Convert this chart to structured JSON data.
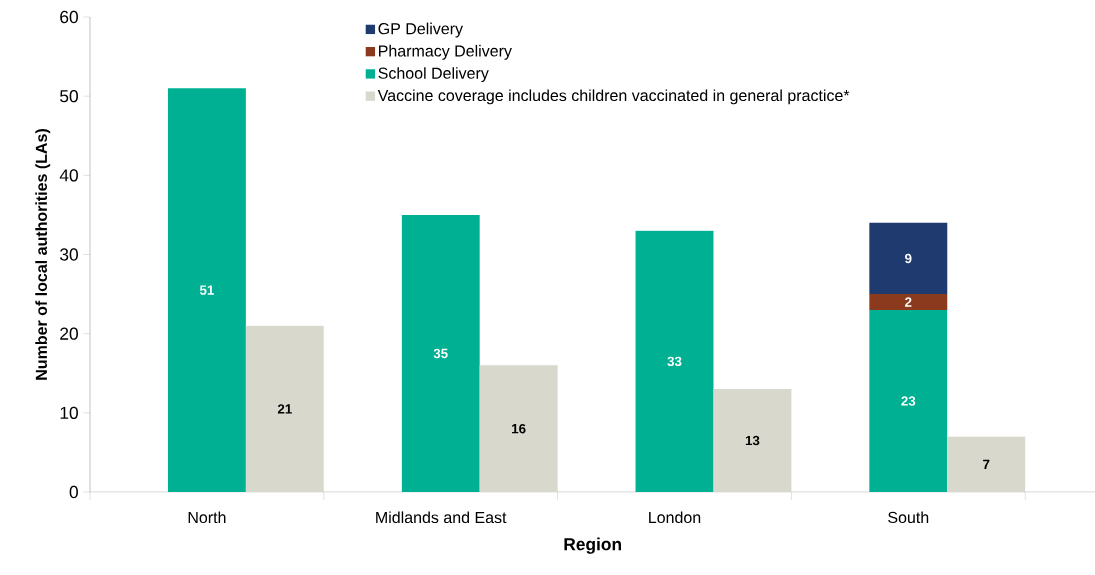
{
  "chart_data": {
    "type": "bar",
    "xlabel": "Region",
    "ylabel": "Number of local authorities (LAs)",
    "categories": [
      "North",
      null,
      "Midlands and East",
      null,
      "London",
      null,
      "South",
      null
    ],
    "stacked": true,
    "series": [
      {
        "name": "School Delivery",
        "color": "#00b092",
        "values": [
          51,
          null,
          35,
          null,
          33,
          null,
          23,
          null
        ]
      },
      {
        "name": "Pharmacy Delivery",
        "color": "#8b3a1e",
        "values": [
          null,
          null,
          null,
          null,
          null,
          null,
          2,
          null
        ]
      },
      {
        "name": "GP Delivery",
        "color": "#1f3a6e",
        "values": [
          null,
          null,
          null,
          null,
          null,
          null,
          9,
          null
        ]
      },
      {
        "name": "Vaccine coverage includes children vaccinated in general practice*",
        "color": "#d9d8cc",
        "values": [
          null,
          21,
          null,
          16,
          null,
          13,
          null,
          7
        ]
      }
    ],
    "ylim": [
      0,
      60
    ],
    "yticks": [
      0,
      10,
      20,
      30,
      40,
      50,
      60
    ],
    "data_labels": true,
    "legend": "top",
    "grid": false
  }
}
